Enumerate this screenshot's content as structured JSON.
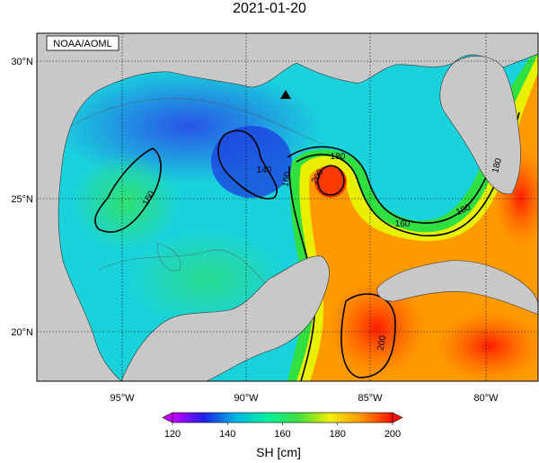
{
  "title": "2021-01-20",
  "credit": "NOAA/AOML",
  "lat_labels": [
    "30°N",
    "25°N",
    "20°N"
  ],
  "lon_labels": [
    "95°W",
    "90°W",
    "85°W",
    "80°W"
  ],
  "contour_labels": [
    "140",
    "160",
    "160",
    "180",
    "180",
    "180",
    "200",
    "200",
    "160"
  ],
  "colorbar": {
    "label": "SH [cm]",
    "ticks": [
      "120",
      "140",
      "160",
      "180",
      "200"
    ],
    "min": 120,
    "max": 200,
    "stops": [
      "#c800ff",
      "#2020e6",
      "#00b4e6",
      "#00f0a0",
      "#40e040",
      "#f0f000",
      "#ff9600",
      "#ff1000"
    ]
  },
  "colors": {
    "land": "#c8c8c8",
    "water_bg": "#1ad2dc",
    "marker": "#000000"
  },
  "markers": [
    {
      "symbol": "triangle",
      "lat": 28.6,
      "lon": -88.3
    }
  ]
}
